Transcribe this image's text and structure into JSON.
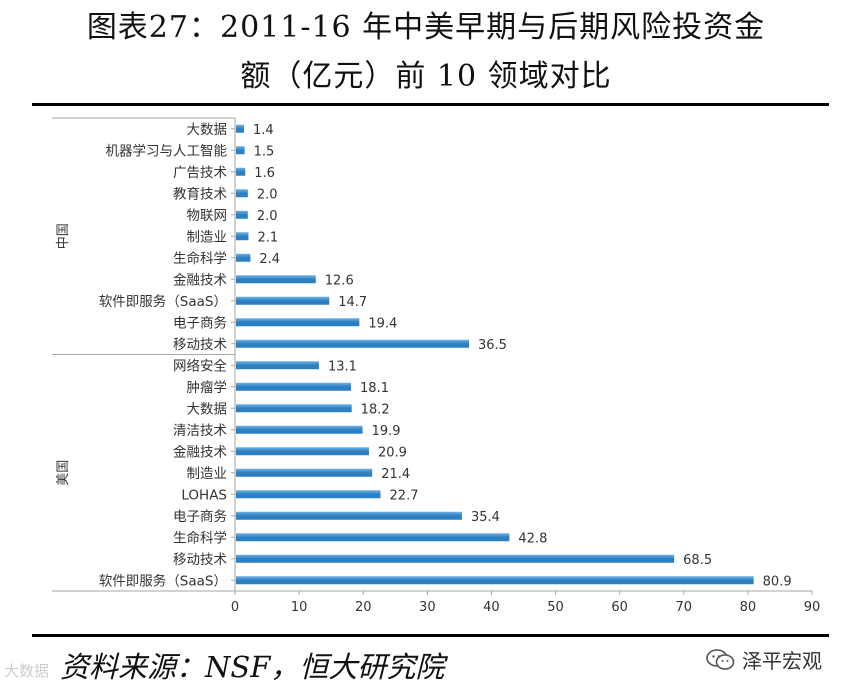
{
  "header": {
    "title_line1": "图表27：2011-16 年中美早期与后期风险投资金",
    "title_line2": "额（亿元）前 10 领域对比"
  },
  "footer": {
    "source": "资料来源：NSF，恒大研究院",
    "brand": "泽平宏观",
    "watermark": "大数据"
  },
  "colors": {
    "bar": "#2c7fc1",
    "bar_light": "#6fb3e6",
    "axis": "#a6a6a6"
  },
  "icons": {
    "brand": "wechat-icon"
  },
  "chart_data": {
    "type": "bar",
    "orientation": "horizontal",
    "xlim": [
      0,
      90
    ],
    "xticks": [
      "0",
      "10",
      "20",
      "30",
      "40",
      "50",
      "60",
      "70",
      "80",
      "90"
    ],
    "groups": [
      {
        "name": "中国",
        "categories": [
          "大数据",
          "机器学习与人工智能",
          "广告技术",
          "教育技术",
          "物联网",
          "制造业",
          "生命科学",
          "金融技术",
          "软件即服务（SaaS）",
          "电子商务",
          "移动技术"
        ],
        "values": [
          1.4,
          1.5,
          1.6,
          2.0,
          2.0,
          2.1,
          2.4,
          12.6,
          14.7,
          19.4,
          36.5
        ],
        "labels": [
          "1.4",
          "1.5",
          "1.6",
          "2.0",
          "2.0",
          "2.1",
          "2.4",
          "12.6",
          "14.7",
          "19.4",
          "36.5"
        ]
      },
      {
        "name": "美国",
        "categories": [
          "网络安全",
          "肿瘤学",
          "大数据",
          "清洁技术",
          "金融技术",
          "制造业",
          "LOHAS",
          "电子商务",
          "生命科学",
          "移动技术",
          "软件即服务（SaaS）"
        ],
        "values": [
          13.1,
          18.1,
          18.2,
          19.9,
          20.9,
          21.4,
          22.7,
          35.4,
          42.8,
          68.5,
          80.9
        ],
        "labels": [
          "13.1",
          "18.1",
          "18.2",
          "19.9",
          "20.9",
          "21.4",
          "22.7",
          "35.4",
          "42.8",
          "68.5",
          "80.9"
        ]
      }
    ]
  }
}
